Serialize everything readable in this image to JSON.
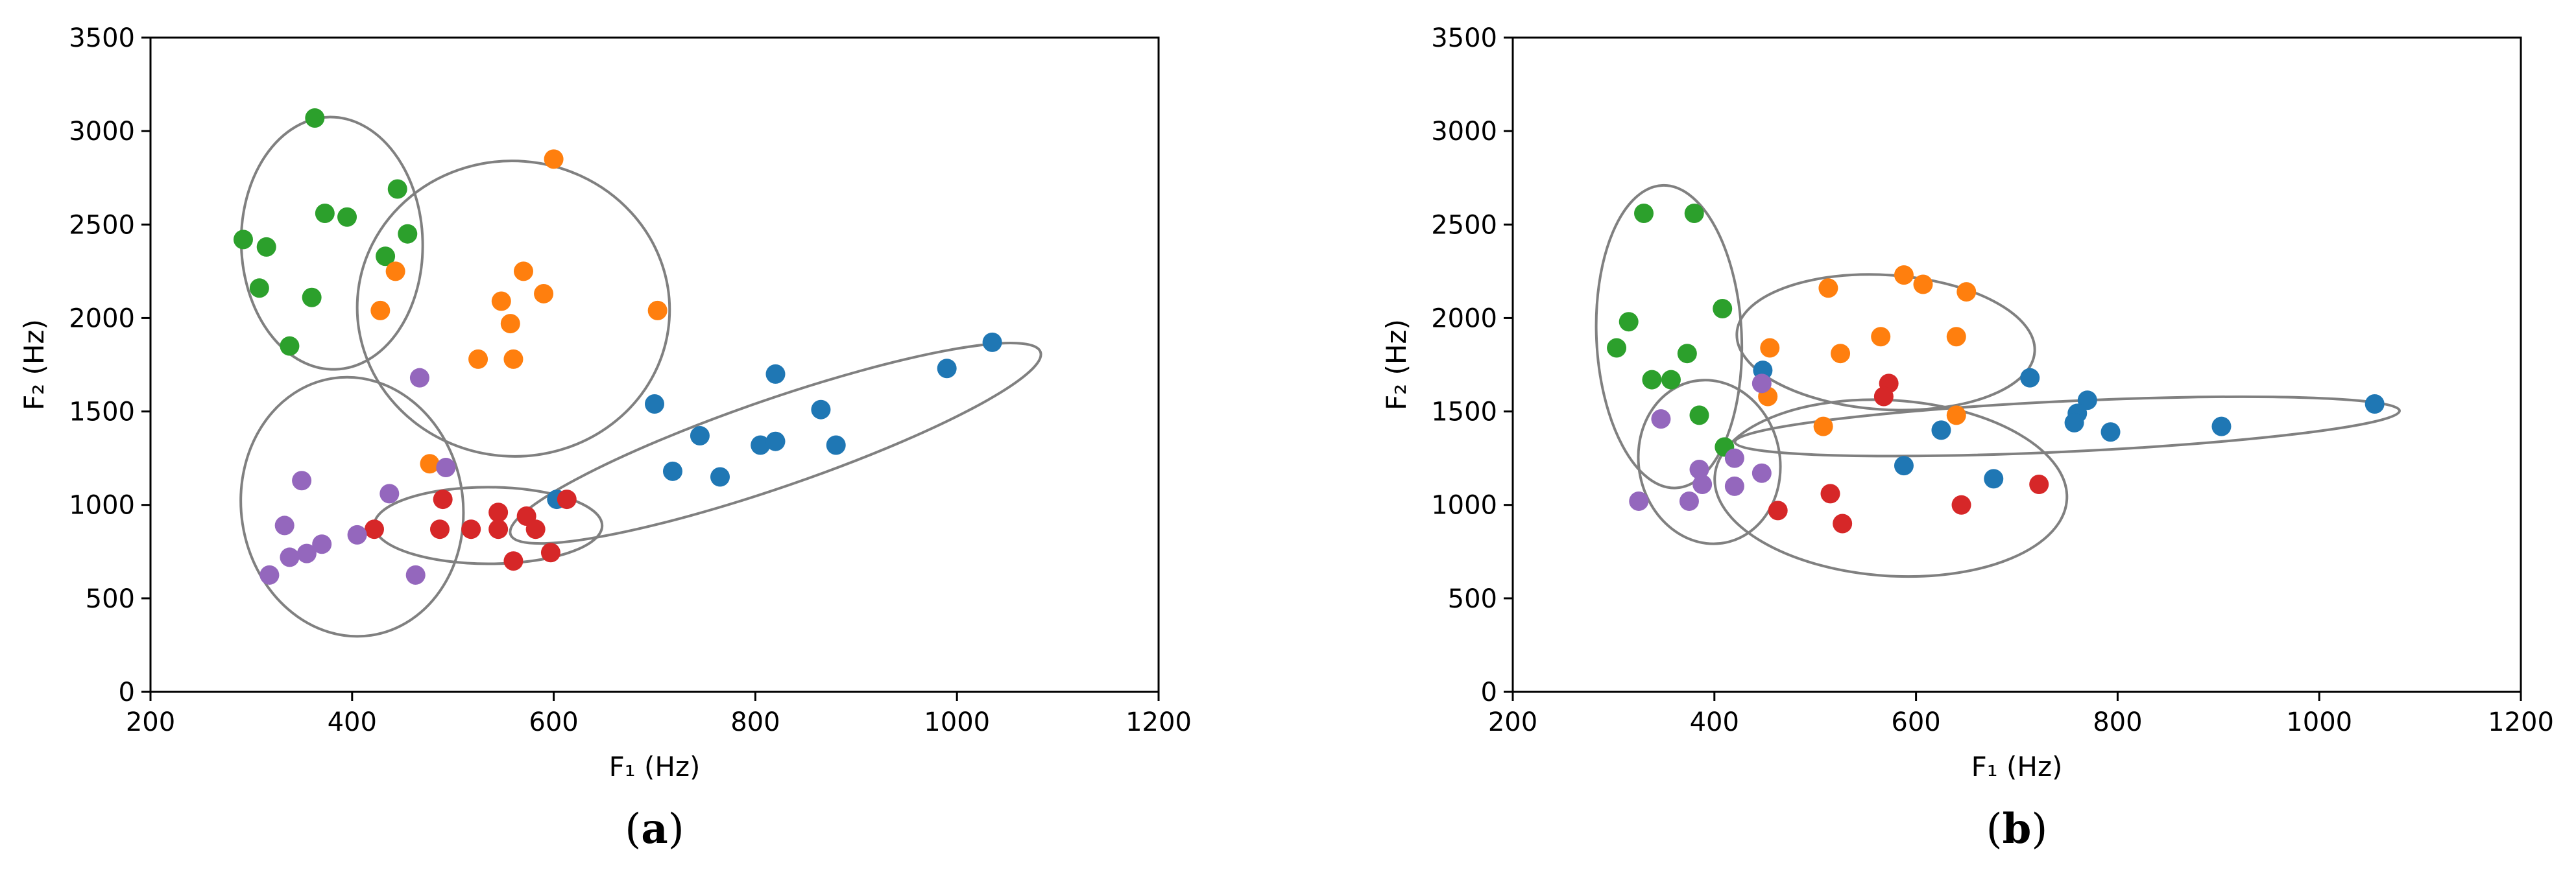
{
  "figure": {
    "background": "#ffffff"
  },
  "chart_data": [
    {
      "type": "scatter",
      "panel_label": "a",
      "xlabel": "F₁ (Hz)",
      "ylabel": "F₂ (Hz)",
      "xlim": [
        200,
        1200
      ],
      "ylim": [
        0,
        3500
      ],
      "xticks": [
        200,
        400,
        600,
        800,
        1000,
        1200
      ],
      "yticks": [
        0,
        500,
        1000,
        1500,
        2000,
        2500,
        3000,
        3500
      ],
      "grid": false,
      "series": [
        {
          "color": "#2ca02c",
          "points": [
            [
              363,
              3070
            ],
            [
              292,
              2420
            ],
            [
              315,
              2380
            ],
            [
              373,
              2560
            ],
            [
              395,
              2540
            ],
            [
              445,
              2690
            ],
            [
              455,
              2450
            ],
            [
              433,
              2330
            ],
            [
              308,
              2160
            ],
            [
              360,
              2110
            ],
            [
              338,
              1850
            ]
          ]
        },
        {
          "color": "#ff7f0e",
          "points": [
            [
              600,
              2850
            ],
            [
              570,
              2250
            ],
            [
              443,
              2250
            ],
            [
              590,
              2130
            ],
            [
              548,
              2090
            ],
            [
              428,
              2040
            ],
            [
              703,
              2040
            ],
            [
              557,
              1970
            ],
            [
              525,
              1780
            ],
            [
              560,
              1780
            ],
            [
              477,
              1220
            ]
          ]
        },
        {
          "color": "#1f77b4",
          "points": [
            [
              1035,
              1870
            ],
            [
              990,
              1730
            ],
            [
              820,
              1700
            ],
            [
              700,
              1540
            ],
            [
              865,
              1510
            ],
            [
              745,
              1370
            ],
            [
              805,
              1320
            ],
            [
              820,
              1340
            ],
            [
              880,
              1320
            ],
            [
              718,
              1180
            ],
            [
              765,
              1150
            ],
            [
              603,
              1030
            ]
          ]
        },
        {
          "color": "#d62728",
          "points": [
            [
              613,
              1030
            ],
            [
              490,
              1030
            ],
            [
              545,
              960
            ],
            [
              573,
              940
            ],
            [
              422,
              870
            ],
            [
              487,
              870
            ],
            [
              518,
              870
            ],
            [
              545,
              870
            ],
            [
              582,
              870
            ],
            [
              597,
              745
            ],
            [
              560,
              700
            ]
          ]
        },
        {
          "color": "#9467bd",
          "points": [
            [
              467,
              1680
            ],
            [
              493,
              1200
            ],
            [
              350,
              1130
            ],
            [
              437,
              1060
            ],
            [
              333,
              890
            ],
            [
              405,
              840
            ],
            [
              370,
              790
            ],
            [
              355,
              740
            ],
            [
              338,
              720
            ],
            [
              318,
              625
            ],
            [
              463,
              625
            ]
          ]
        }
      ],
      "ellipses": [
        {
          "cx": 380,
          "cy": 2400,
          "rx": 90,
          "ry": 675,
          "rotation": 1.5
        },
        {
          "cx": 560,
          "cy": 2050,
          "rx": 155,
          "ry": 790,
          "rotation": -4.2
        },
        {
          "cx": 820,
          "cy": 1330,
          "rx": 278,
          "ry": 235,
          "rotation": 19.0
        },
        {
          "cx": 400,
          "cy": 990,
          "rx": 110,
          "ry": 695,
          "rotation": 8.4
        },
        {
          "cx": 535,
          "cy": 890,
          "rx": 113,
          "ry": 205,
          "rotation": -0.1
        }
      ]
    },
    {
      "type": "scatter",
      "panel_label": "b",
      "xlabel": "F₁ (Hz)",
      "ylabel": "F₂ (Hz)",
      "xlim": [
        200,
        1200
      ],
      "ylim": [
        0,
        3500
      ],
      "xticks": [
        200,
        400,
        600,
        800,
        1000,
        1200
      ],
      "yticks": [
        0,
        500,
        1000,
        1500,
        2000,
        2500,
        3000,
        3500
      ],
      "grid": false,
      "series": [
        {
          "color": "#2ca02c",
          "points": [
            [
              330,
              2560
            ],
            [
              380,
              2560
            ],
            [
              315,
              1980
            ],
            [
              303,
              1840
            ],
            [
              408,
              2050
            ],
            [
              373,
              1810
            ],
            [
              338,
              1670
            ],
            [
              357,
              1670
            ],
            [
              385,
              1480
            ],
            [
              410,
              1310
            ]
          ]
        },
        {
          "color": "#ff7f0e",
          "points": [
            [
              588,
              2230
            ],
            [
              607,
              2180
            ],
            [
              650,
              2140
            ],
            [
              513,
              2160
            ],
            [
              565,
              1900
            ],
            [
              640,
              1900
            ],
            [
              455,
              1840
            ],
            [
              525,
              1810
            ],
            [
              453,
              1580
            ],
            [
              640,
              1480
            ],
            [
              508,
              1420
            ]
          ]
        },
        {
          "color": "#1f77b4",
          "points": [
            [
              1055,
              1540
            ],
            [
              713,
              1680
            ],
            [
              770,
              1560
            ],
            [
              760,
              1490
            ],
            [
              757,
              1440
            ],
            [
              793,
              1390
            ],
            [
              903,
              1420
            ],
            [
              448,
              1720
            ],
            [
              625,
              1400
            ],
            [
              588,
              1210
            ],
            [
              677,
              1140
            ]
          ]
        },
        {
          "color": "#d62728",
          "points": [
            [
              573,
              1650
            ],
            [
              568,
              1580
            ],
            [
              722,
              1110
            ],
            [
              515,
              1060
            ],
            [
              645,
              1000
            ],
            [
              463,
              970
            ],
            [
              527,
              900
            ]
          ]
        },
        {
          "color": "#9467bd",
          "points": [
            [
              447,
              1650
            ],
            [
              347,
              1460
            ],
            [
              420,
              1250
            ],
            [
              385,
              1190
            ],
            [
              447,
              1170
            ],
            [
              388,
              1110
            ],
            [
              420,
              1100
            ],
            [
              325,
              1020
            ],
            [
              375,
              1020
            ]
          ]
        }
      ],
      "ellipses": [
        {
          "cx": 355,
          "cy": 1900,
          "rx": 72,
          "ry": 810,
          "rotation": 2.6
        },
        {
          "cx": 570,
          "cy": 1870,
          "rx": 148,
          "ry": 360,
          "rotation": -3.6
        },
        {
          "cx": 750,
          "cy": 1420,
          "rx": 330,
          "ry": 135,
          "rotation": 2.7
        },
        {
          "cx": 575,
          "cy": 1090,
          "rx": 175,
          "ry": 470,
          "rotation": -3.8
        },
        {
          "cx": 395,
          "cy": 1230,
          "rx": 70,
          "ry": 440,
          "rotation": 11.3
        }
      ]
    }
  ]
}
